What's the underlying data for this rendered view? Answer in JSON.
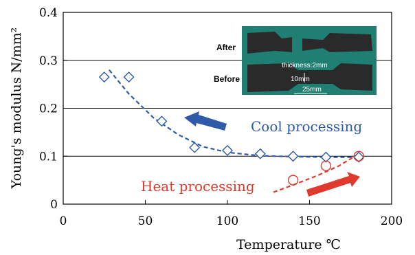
{
  "chart_data": {
    "type": "scatter",
    "xlabel": "Temperature ℃",
    "ylabel": "Young's modulus N/mm²",
    "xlim": [
      0,
      200
    ],
    "ylim": [
      0,
      0.4
    ],
    "x_ticks": [
      "0",
      "50",
      "100",
      "150",
      "200"
    ],
    "y_ticks": [
      "0",
      "0.1",
      "0.2",
      "0.3",
      "0.4"
    ],
    "grid": "horizontal",
    "series": [
      {
        "name": "Cool processing",
        "marker": "diamond",
        "color": "#2e5aa8",
        "x": [
          25,
          40,
          60,
          80,
          100,
          120,
          140,
          160,
          180
        ],
        "y": [
          0.265,
          0.265,
          0.173,
          0.118,
          0.112,
          0.105,
          0.1,
          0.098,
          0.098
        ],
        "trend_x": [
          28,
          40,
          55,
          70,
          85,
          100,
          120,
          140,
          160,
          180
        ],
        "trend_y": [
          0.28,
          0.23,
          0.18,
          0.145,
          0.12,
          0.108,
          0.101,
          0.099,
          0.098,
          0.098
        ]
      },
      {
        "name": "Heat processing",
        "marker": "circle",
        "color": "#e03a2e",
        "x": [
          140,
          160,
          180
        ],
        "y": [
          0.05,
          0.08,
          0.1
        ],
        "trend_x": [
          128,
          140,
          155,
          168,
          180
        ],
        "trend_y": [
          0.025,
          0.04,
          0.06,
          0.08,
          0.105
        ]
      }
    ],
    "inset_photo": {
      "label_after": "After",
      "label_before": "Before",
      "thickness": "thickness:2mm",
      "width": "10mm",
      "length": "25mm"
    }
  }
}
